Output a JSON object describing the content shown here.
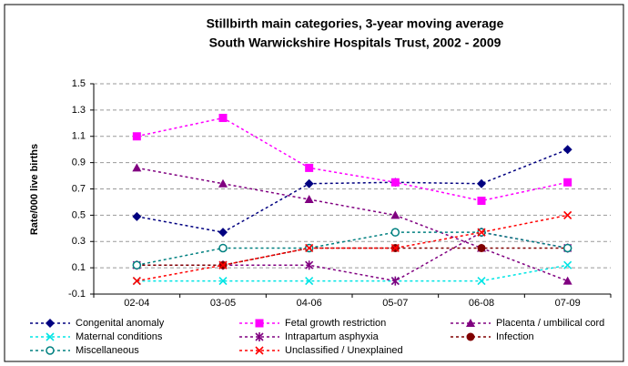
{
  "chart_data": {
    "type": "line",
    "title": "Stillbirth main categories, 3-year moving average",
    "subtitle": "South Warwickshire Hospitals Trust, 2002 - 2009",
    "y_label": "Rate/000 live births",
    "categories": [
      "02-04",
      "03-05",
      "04-06",
      "05-07",
      "06-08",
      "07-09"
    ],
    "ylim": [
      -0.1,
      1.5
    ],
    "yticks": [
      -0.1,
      0.1,
      0.3,
      0.5,
      0.7,
      0.9,
      1.1,
      1.3,
      1.5
    ],
    "grid": true,
    "legend": "bottom",
    "series": [
      {
        "name": "Congenital anomaly",
        "color": "#000080",
        "marker": "diamond",
        "values": [
          0.49,
          0.37,
          0.74,
          0.75,
          0.74,
          1.0
        ]
      },
      {
        "name": "Fetal growth restriction",
        "color": "#ff00ff",
        "marker": "square",
        "values": [
          1.1,
          1.24,
          0.86,
          0.75,
          0.61,
          0.75
        ]
      },
      {
        "name": "Placenta / umbilical cord",
        "color": "#800080",
        "marker": "triangle",
        "values": [
          0.86,
          0.74,
          0.62,
          0.5,
          0.25,
          0.0
        ]
      },
      {
        "name": "Maternal conditions",
        "color": "#00e5e5",
        "marker": "x",
        "values": [
          0.0,
          0.0,
          0.0,
          0.0,
          0.0,
          0.12
        ]
      },
      {
        "name": "Intrapartum asphyxia",
        "color": "#800080",
        "marker": "star",
        "values": [
          0.12,
          0.12,
          0.12,
          0.0,
          0.37,
          0.25
        ]
      },
      {
        "name": "Infection",
        "color": "#800000",
        "marker": "circle",
        "values": [
          0.12,
          0.12,
          0.25,
          0.25,
          0.25,
          0.25
        ]
      },
      {
        "name": "Miscellaneous",
        "color": "#008080",
        "marker": "open-circle",
        "values": [
          0.12,
          0.25,
          0.25,
          0.37,
          0.37,
          0.25
        ]
      },
      {
        "name": "Unclassified / Unexplained",
        "color": "#ff0000",
        "marker": "x",
        "values": [
          0.0,
          0.12,
          0.25,
          0.25,
          0.37,
          0.5
        ]
      }
    ]
  }
}
